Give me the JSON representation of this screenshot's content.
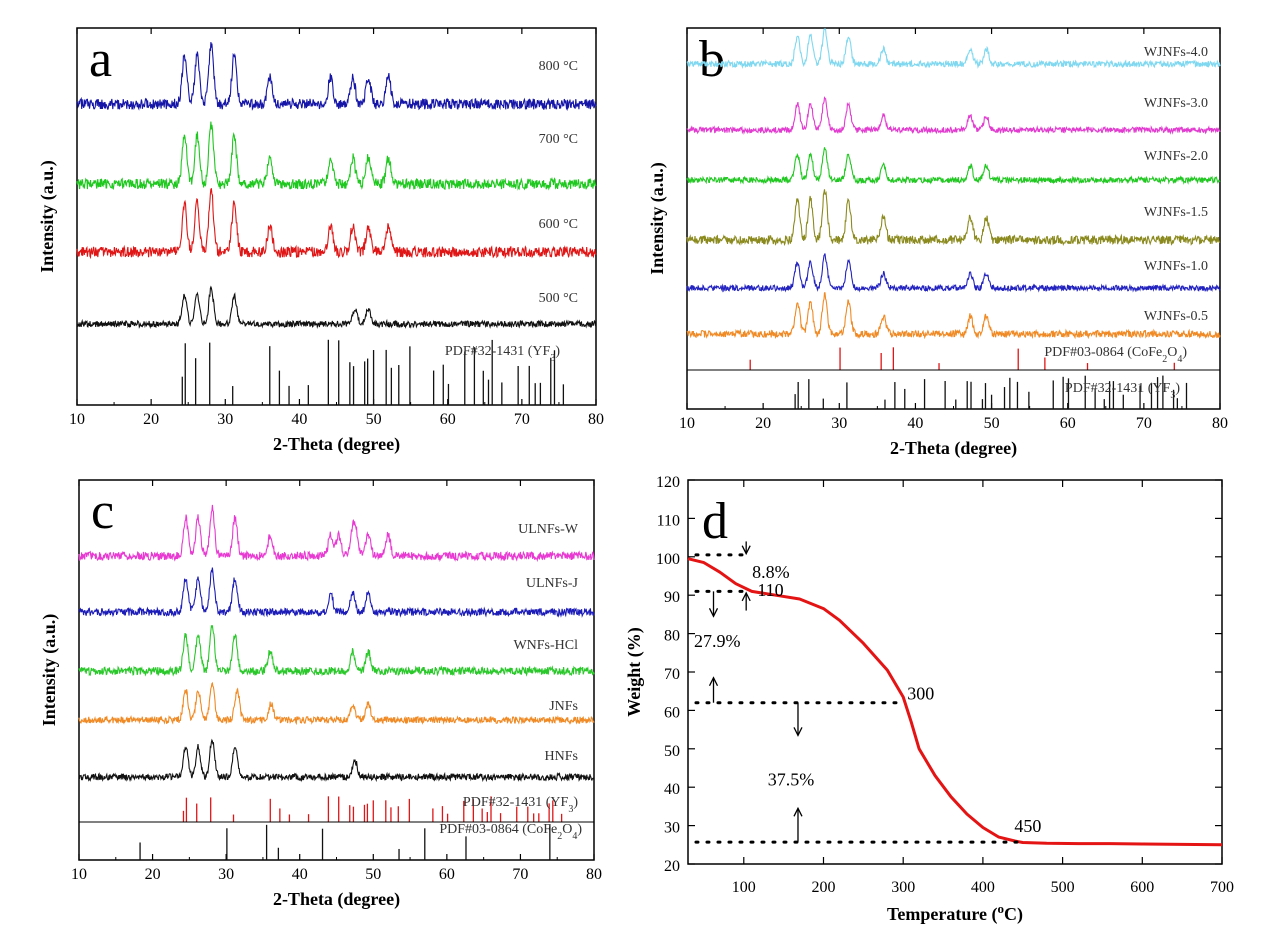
{
  "panels": {
    "a": {
      "letter": "a",
      "xlabel": "2-Theta (degree)",
      "ylabel": "Intensity (a.u.)",
      "xlim": [
        10,
        80
      ],
      "xticks": [
        "10",
        "20",
        "30",
        "40",
        "50",
        "60",
        "70",
        "80"
      ],
      "series": [
        {
          "name": "800 °C",
          "color": "#1515a8"
        },
        {
          "name": "700 °C",
          "color": "#1fc81f"
        },
        {
          "name": "600 °C",
          "color": "#e01515"
        },
        {
          "name": "500 °C",
          "color": "#111111"
        }
      ],
      "references": [
        {
          "name": "PDF#32-1431 (YF",
          "sub": "3",
          "tail": ")",
          "color": "#111111"
        }
      ]
    },
    "b": {
      "letter": "b",
      "xlabel": "2-Theta (degree)",
      "ylabel": "Intensity (a.u.)",
      "xlim": [
        10,
        80
      ],
      "xticks": [
        "10",
        "20",
        "30",
        "40",
        "50",
        "60",
        "70",
        "80"
      ],
      "series": [
        {
          "name": "WJNFs-4.0",
          "color": "#7fd8f0"
        },
        {
          "name": "WJNFs-3.0",
          "color": "#e23bd0"
        },
        {
          "name": "WJNFs-2.0",
          "color": "#22c822"
        },
        {
          "name": "WJNFs-1.5",
          "color": "#8b8a1e"
        },
        {
          "name": "WJNFs-1.0",
          "color": "#2323c0"
        },
        {
          "name": "WJNFs-0.5",
          "color": "#f08a25"
        }
      ],
      "references": [
        {
          "name": "PDF#03-0864 (CoFe",
          "sub": "2",
          "mid": "O",
          "sub2": "4",
          "tail": ")",
          "color": "#e01515"
        },
        {
          "name": "PDF#32-1431 (YF",
          "sub": "3",
          "tail": ")",
          "color": "#111111"
        }
      ]
    },
    "c": {
      "letter": "c",
      "xlabel": "2-Theta (degree)",
      "ylabel": "Intensity (a.u.)",
      "xlim": [
        10,
        80
      ],
      "xticks": [
        "10",
        "20",
        "30",
        "40",
        "50",
        "60",
        "70",
        "80"
      ],
      "series": [
        {
          "name": "ULNFs-W",
          "color": "#e83ad2"
        },
        {
          "name": "ULNFs-J",
          "color": "#1c1cb8"
        },
        {
          "name": "WNFs-HCl",
          "color": "#2bc82b"
        },
        {
          "name": "JNFs",
          "color": "#f08a25"
        },
        {
          "name": "HNFs",
          "color": "#111111"
        }
      ],
      "references": [
        {
          "name": "PDF#32-1431 (YF",
          "sub": "3",
          "tail": ")",
          "color": "#e01515"
        },
        {
          "name": "PDF#03-0864 (CoFe",
          "sub": "2",
          "mid": "O",
          "sub2": "4",
          "tail": ")",
          "color": "#111111"
        }
      ]
    },
    "d": {
      "letter": "d",
      "xlabel_pre": "Temperature (",
      "xlabel_sup": "o",
      "xlabel_post": "C)",
      "ylabel": "Weight (%)",
      "xlim": [
        30,
        700
      ],
      "ylim": [
        20,
        120
      ],
      "xticks": [
        "100",
        "200",
        "300",
        "400",
        "500",
        "600",
        "700"
      ],
      "yticks": [
        "20",
        "30",
        "40",
        "50",
        "60",
        "70",
        "80",
        "90",
        "100",
        "110",
        "120"
      ],
      "annotations": {
        "loss1": "8.8%",
        "loss2": "27.9%",
        "loss3": "37.5%",
        "t1": "110",
        "t2": "300",
        "t3": "450"
      }
    }
  },
  "chart_data": [
    {
      "type": "line",
      "panel": "a",
      "title": "",
      "xlabel": "2-Theta (degree)",
      "ylabel": "Intensity (a.u.)",
      "xlim": [
        10,
        80
      ],
      "series": [
        {
          "name": "800 °C",
          "peaks": [
            24.5,
            26.2,
            28.1,
            31.2,
            36.0,
            44.2,
            47.2,
            49.3,
            52.0
          ]
        },
        {
          "name": "700 °C",
          "peaks": [
            24.5,
            26.2,
            28.1,
            31.2,
            36.0,
            44.2,
            47.2,
            49.3,
            52.0
          ]
        },
        {
          "name": "600 °C",
          "peaks": [
            24.5,
            26.2,
            28.1,
            31.2,
            36.0,
            44.2,
            47.2,
            49.3,
            52.0
          ]
        },
        {
          "name": "500 °C",
          "peaks": [
            24.5,
            26.2,
            28.1,
            31.2,
            47.5,
            49.3
          ]
        }
      ],
      "reference_lines": {
        "PDF#32-1431 (YF3)": [
          24.2,
          24.6,
          26.0,
          27.9,
          31.0,
          36.0,
          37.3,
          38.6,
          41.2,
          43.9,
          45.3,
          46.8,
          47.3,
          48.8,
          49.2,
          50.0,
          51.7,
          52.4,
          53.4,
          54.9,
          58.1,
          59.4,
          60.1,
          62.3,
          63.6,
          64.8,
          65.5,
          66.0,
          67.3,
          69.5,
          71.0,
          71.8,
          72.5,
          73.9,
          74.4,
          75.6
        ]
      }
    },
    {
      "type": "line",
      "panel": "b",
      "title": "",
      "xlabel": "2-Theta (degree)",
      "ylabel": "Intensity (a.u.)",
      "xlim": [
        10,
        80
      ],
      "series": [
        {
          "name": "WJNFs-4.0",
          "peaks": [
            24.5,
            26.2,
            28.1,
            31.2,
            35.8,
            47.2,
            49.3
          ]
        },
        {
          "name": "WJNFs-3.0",
          "peaks": [
            24.5,
            26.2,
            28.1,
            31.2,
            35.8,
            47.2,
            49.3
          ]
        },
        {
          "name": "WJNFs-2.0",
          "peaks": [
            24.5,
            26.2,
            28.1,
            31.2,
            35.8,
            47.2,
            49.3
          ]
        },
        {
          "name": "WJNFs-1.5",
          "peaks": [
            24.5,
            26.2,
            28.1,
            31.2,
            35.8,
            47.2,
            49.3
          ]
        },
        {
          "name": "WJNFs-1.0",
          "peaks": [
            24.5,
            26.2,
            28.1,
            31.2,
            35.8,
            47.2,
            49.3
          ]
        },
        {
          "name": "WJNFs-0.5",
          "peaks": [
            24.5,
            26.2,
            28.1,
            31.2,
            35.8,
            47.2,
            49.3
          ]
        }
      ],
      "reference_lines": {
        "PDF#03-0864 (CoFe2O4)": [
          18.3,
          30.1,
          35.5,
          37.1,
          43.1,
          53.5,
          57.0,
          62.6,
          74.0
        ],
        "PDF#32-1431 (YF3)": [
          24.2,
          24.6,
          26.0,
          27.9,
          31.0,
          36.0,
          37.3,
          38.6,
          41.2,
          43.9,
          45.3,
          46.8,
          47.3,
          48.8,
          49.2,
          50.0,
          51.7,
          52.4,
          53.4,
          54.9,
          58.1,
          59.4,
          60.1,
          62.3,
          63.6,
          64.8,
          65.5,
          66.0,
          67.3,
          69.5,
          71.0,
          71.8,
          72.5,
          73.9,
          74.4,
          75.6
        ]
      }
    },
    {
      "type": "line",
      "panel": "c",
      "title": "",
      "xlabel": "2-Theta (degree)",
      "ylabel": "Intensity (a.u.)",
      "xlim": [
        10,
        80
      ],
      "series": [
        {
          "name": "ULNFs-W",
          "peaks": [
            24.5,
            26.2,
            28.1,
            31.2,
            36.0,
            44.2,
            45.3,
            47.2,
            47.6,
            49.3,
            52.0
          ]
        },
        {
          "name": "ULNFs-J",
          "peaks": [
            24.5,
            26.2,
            28.1,
            31.2,
            44.2,
            47.2,
            49.3
          ]
        },
        {
          "name": "WNFs-HCl",
          "peaks": [
            24.5,
            26.2,
            28.1,
            31.2,
            36.0,
            47.2,
            49.3
          ]
        },
        {
          "name": "JNFs",
          "peaks": [
            24.5,
            26.2,
            28.1,
            31.5,
            36.1,
            47.2,
            49.3
          ]
        },
        {
          "name": "HNFs",
          "peaks": [
            24.5,
            26.2,
            28.1,
            31.2,
            47.5
          ]
        }
      ],
      "reference_lines": {
        "PDF#32-1431 (YF3)": [
          24.2,
          24.6,
          26.0,
          27.9,
          31.0,
          36.0,
          37.3,
          38.6,
          41.2,
          43.9,
          45.3,
          46.8,
          47.3,
          48.8,
          49.2,
          50.0,
          51.7,
          52.4,
          53.4,
          54.9,
          58.1,
          59.4,
          60.1,
          62.3,
          63.6,
          64.8,
          65.5,
          66.0,
          67.3,
          69.5,
          71.0,
          71.8,
          72.5,
          73.9,
          74.4,
          75.6
        ],
        "PDF#03-0864 (CoFe2O4)": [
          18.3,
          30.1,
          35.5,
          37.1,
          43.1,
          53.5,
          57.0,
          62.6,
          74.0
        ]
      }
    },
    {
      "type": "line",
      "panel": "d",
      "title": "",
      "xlabel": "Temperature (oC)",
      "ylabel": "Weight (%)",
      "xlim": [
        30,
        700
      ],
      "ylim": [
        20,
        120
      ],
      "series": [
        {
          "name": "TGA",
          "x": [
            30,
            50,
            70,
            90,
            110,
            140,
            170,
            200,
            220,
            250,
            280,
            300,
            310,
            320,
            340,
            360,
            380,
            400,
            420,
            440,
            450,
            480,
            520,
            560,
            600,
            650,
            700
          ],
          "y": [
            99.5,
            98.5,
            96.0,
            93.0,
            91.0,
            90.0,
            89.0,
            86.5,
            83.5,
            77.5,
            70.5,
            63.5,
            57.0,
            50.0,
            43.0,
            37.5,
            33.0,
            29.5,
            27.0,
            26.0,
            25.6,
            25.4,
            25.3,
            25.3,
            25.2,
            25.1,
            25.0
          ]
        }
      ],
      "annotations": [
        "8.8%",
        "27.9%",
        "37.5%",
        "110",
        "300",
        "450"
      ]
    }
  ]
}
